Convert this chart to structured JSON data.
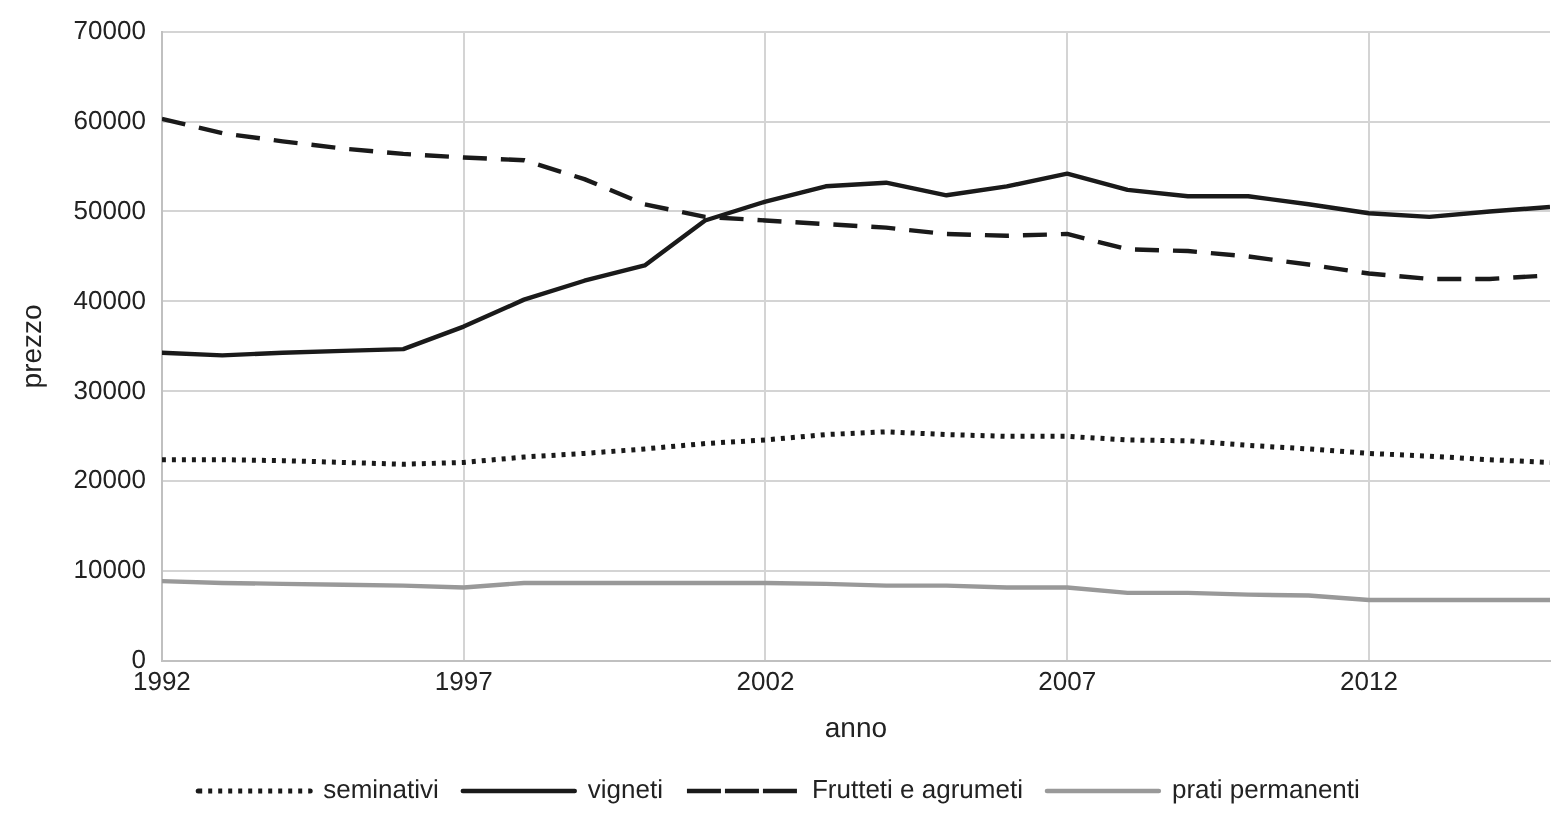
{
  "chart_data": {
    "type": "line",
    "xlabel": "anno",
    "ylabel": "prezzo",
    "x": [
      1992,
      1993,
      1994,
      1995,
      1996,
      1997,
      1998,
      1999,
      2000,
      2001,
      2002,
      2003,
      2004,
      2005,
      2006,
      2007,
      2008,
      2009,
      2010,
      2011,
      2012,
      2013,
      2014,
      2015
    ],
    "xlim": [
      1992,
      2015
    ],
    "xticks": [
      1992,
      1997,
      2002,
      2007,
      2012
    ],
    "ylim": [
      0,
      70000
    ],
    "yticks": [
      0,
      10000,
      20000,
      30000,
      40000,
      50000,
      60000,
      70000
    ],
    "grid": true,
    "legend": "bottom",
    "marker": "none",
    "series": [
      {
        "name": "seminativi",
        "color": "#1a1a1a",
        "line_style": "dotted",
        "values": [
          22400,
          22400,
          22300,
          22100,
          21900,
          22100,
          22700,
          23100,
          23600,
          24200,
          24600,
          25200,
          25500,
          25200,
          25000,
          25000,
          24600,
          24500,
          24000,
          23600,
          23100,
          22800,
          22400,
          22100
        ]
      },
      {
        "name": "vigneti",
        "color": "#1a1a1a",
        "line_style": "solid",
        "values": [
          34300,
          34000,
          34300,
          34500,
          34700,
          37200,
          40200,
          42300,
          44000,
          49000,
          51100,
          52800,
          53200,
          51800,
          52800,
          54200,
          52400,
          51700,
          51700,
          50800,
          49800,
          49400,
          50000,
          50500
        ]
      },
      {
        "name": "Frutteti e agrumeti",
        "color": "#1a1a1a",
        "line_style": "dashed",
        "values": [
          60300,
          58700,
          57800,
          57000,
          56400,
          56000,
          55700,
          53600,
          50800,
          49400,
          49000,
          48600,
          48200,
          47500,
          47300,
          47500,
          45800,
          45600,
          45000,
          44100,
          43100,
          42500,
          42500,
          42900
        ]
      },
      {
        "name": "prati permanenti",
        "color": "#999999",
        "line_style": "solid",
        "values": [
          8900,
          8700,
          8600,
          8500,
          8400,
          8200,
          8700,
          8700,
          8700,
          8700,
          8700,
          8600,
          8400,
          8400,
          8200,
          8200,
          7600,
          7600,
          7400,
          7300,
          6800,
          6800,
          6800,
          6800
        ]
      }
    ]
  }
}
